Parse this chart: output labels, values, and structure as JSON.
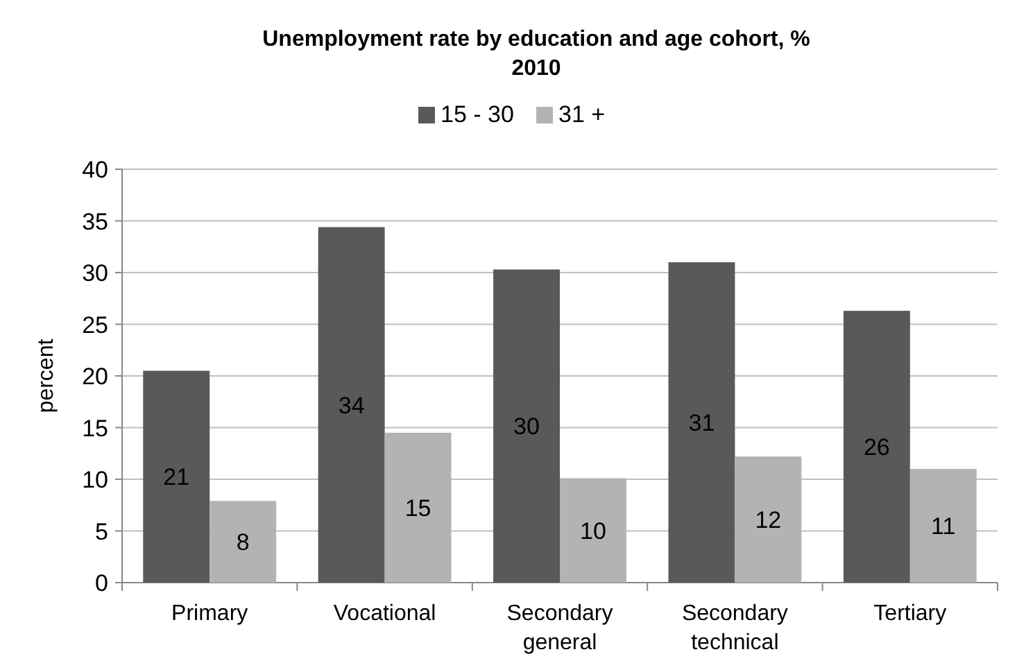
{
  "chart_data": {
    "type": "bar",
    "title": "Unemployment rate by education and age cohort, %\n2010",
    "ylabel": "percent",
    "categories": [
      "Primary",
      "Vocational",
      "Secondary\ngeneral",
      "Secondary\ntechnical",
      "Tertiary"
    ],
    "series": [
      {
        "name": "15 - 30",
        "color": "#595959",
        "values": [
          20.5,
          34.4,
          30.3,
          31.0,
          26.3
        ],
        "value_labels": [
          "21",
          "34",
          "30",
          "31",
          "26"
        ]
      },
      {
        "name": "31 +",
        "color": "#b3b3b3",
        "values": [
          7.9,
          14.5,
          10.1,
          12.2,
          11.0
        ],
        "value_labels": [
          "8",
          "15",
          "10",
          "12",
          "11"
        ]
      }
    ],
    "ylim": [
      0,
      40
    ],
    "yticks": [
      0,
      5,
      10,
      15,
      20,
      25,
      30,
      35,
      40
    ],
    "grid": "y",
    "legend": "top"
  }
}
